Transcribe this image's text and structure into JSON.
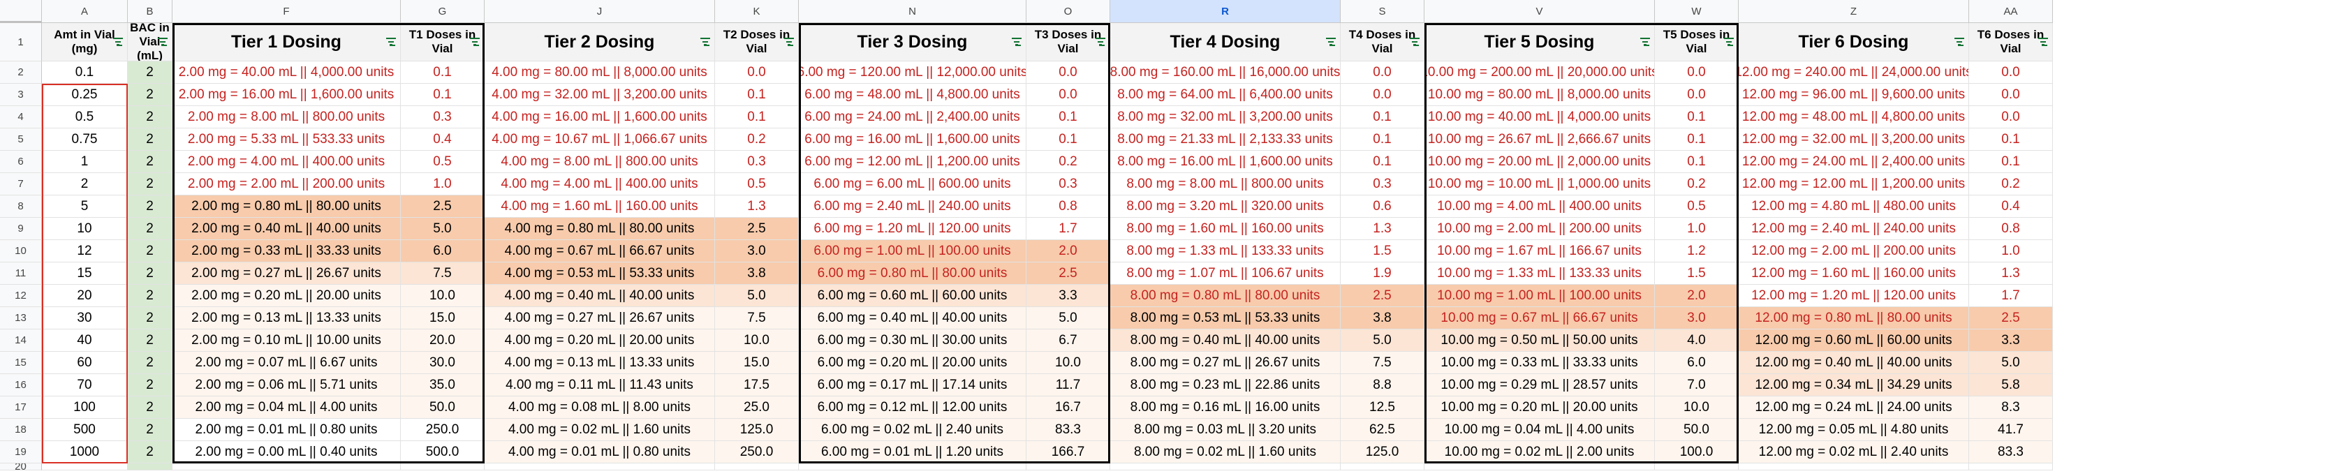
{
  "columns": [
    "A",
    "B",
    "F",
    "G",
    "J",
    "K",
    "N",
    "O",
    "R",
    "S",
    "V",
    "W",
    "Z",
    "AA"
  ],
  "selected_column": "R",
  "row_numbers": [
    "1",
    "2",
    "3",
    "4",
    "5",
    "6",
    "7",
    "8",
    "9",
    "10",
    "11",
    "12",
    "13",
    "14",
    "15",
    "16",
    "17",
    "18",
    "19",
    "20"
  ],
  "headers": [
    "Amt in Vial (mg)",
    "BAC in Vial (mL)",
    "Tier 1 Dosing",
    "T1 Doses in Vial",
    "Tier 2 Dosing",
    "T2 Doses in Vial",
    "Tier 3 Dosing",
    "T3 Doses in Vial",
    "Tier 4 Dosing",
    "T4 Doses in Vial",
    "Tier 5 Dosing",
    "T5 Doses in Vial",
    "Tier 6 Dosing",
    "T6 Doses in Vial"
  ],
  "rows": [
    [
      "0.1",
      "2",
      "2.00 mg = 40.00 mL || 4,000.00 units",
      "0.1",
      "4.00 mg = 80.00 mL || 8,000.00 units",
      "0.0",
      "6.00 mg = 120.00 mL || 12,000.00 units",
      "0.0",
      "8.00 mg = 160.00 mL || 16,000.00 units",
      "0.0",
      "10.00 mg = 200.00 mL || 20,000.00 units",
      "0.0",
      "12.00 mg = 240.00 mL || 24,000.00 units",
      "0.0"
    ],
    [
      "0.25",
      "2",
      "2.00 mg = 16.00 mL || 1,600.00 units",
      "0.1",
      "4.00 mg = 32.00 mL || 3,200.00 units",
      "0.1",
      "6.00 mg = 48.00 mL || 4,800.00 units",
      "0.0",
      "8.00 mg = 64.00 mL || 6,400.00 units",
      "0.0",
      "10.00 mg = 80.00 mL || 8,000.00 units",
      "0.0",
      "12.00 mg = 96.00 mL || 9,600.00 units",
      "0.0"
    ],
    [
      "0.5",
      "2",
      "2.00 mg = 8.00 mL || 800.00 units",
      "0.3",
      "4.00 mg = 16.00 mL || 1,600.00 units",
      "0.1",
      "6.00 mg = 24.00 mL || 2,400.00 units",
      "0.1",
      "8.00 mg = 32.00 mL || 3,200.00 units",
      "0.1",
      "10.00 mg = 40.00 mL || 4,000.00 units",
      "0.1",
      "12.00 mg = 48.00 mL || 4,800.00 units",
      "0.0"
    ],
    [
      "0.75",
      "2",
      "2.00 mg = 5.33 mL || 533.33 units",
      "0.4",
      "4.00 mg = 10.67 mL || 1,066.67 units",
      "0.2",
      "6.00 mg = 16.00 mL || 1,600.00 units",
      "0.1",
      "8.00 mg = 21.33 mL || 2,133.33 units",
      "0.1",
      "10.00 mg = 26.67 mL || 2,666.67 units",
      "0.1",
      "12.00 mg = 32.00 mL || 3,200.00 units",
      "0.1"
    ],
    [
      "1",
      "2",
      "2.00 mg = 4.00 mL || 400.00 units",
      "0.5",
      "4.00 mg = 8.00 mL || 800.00 units",
      "0.3",
      "6.00 mg = 12.00 mL || 1,200.00 units",
      "0.2",
      "8.00 mg = 16.00 mL || 1,600.00 units",
      "0.1",
      "10.00 mg = 20.00 mL || 2,000.00 units",
      "0.1",
      "12.00 mg = 24.00 mL || 2,400.00 units",
      "0.1"
    ],
    [
      "2",
      "2",
      "2.00 mg = 2.00 mL || 200.00 units",
      "1.0",
      "4.00 mg = 4.00 mL || 400.00 units",
      "0.5",
      "6.00 mg = 6.00 mL || 600.00 units",
      "0.3",
      "8.00 mg = 8.00 mL || 800.00 units",
      "0.3",
      "10.00 mg = 10.00 mL || 1,000.00 units",
      "0.2",
      "12.00 mg = 12.00 mL || 1,200.00 units",
      "0.2"
    ],
    [
      "5",
      "2",
      "2.00 mg = 0.80 mL || 80.00 units",
      "2.5",
      "4.00 mg = 1.60 mL || 160.00 units",
      "1.3",
      "6.00 mg = 2.40 mL || 240.00 units",
      "0.8",
      "8.00 mg = 3.20 mL || 320.00 units",
      "0.6",
      "10.00 mg = 4.00 mL || 400.00 units",
      "0.5",
      "12.00 mg = 4.80 mL || 480.00 units",
      "0.4"
    ],
    [
      "10",
      "2",
      "2.00 mg = 0.40 mL || 40.00 units",
      "5.0",
      "4.00 mg = 0.80 mL || 80.00 units",
      "2.5",
      "6.00 mg = 1.20 mL || 120.00 units",
      "1.7",
      "8.00 mg = 1.60 mL || 160.00 units",
      "1.3",
      "10.00 mg = 2.00 mL || 200.00 units",
      "1.0",
      "12.00 mg = 2.40 mL || 240.00 units",
      "0.8"
    ],
    [
      "12",
      "2",
      "2.00 mg = 0.33 mL || 33.33 units",
      "6.0",
      "4.00 mg = 0.67 mL || 66.67 units",
      "3.0",
      "6.00 mg = 1.00 mL || 100.00 units",
      "2.0",
      "8.00 mg = 1.33 mL || 133.33 units",
      "1.5",
      "10.00 mg = 1.67 mL || 166.67 units",
      "1.2",
      "12.00 mg = 2.00 mL || 200.00 units",
      "1.0"
    ],
    [
      "15",
      "2",
      "2.00 mg = 0.27 mL || 26.67 units",
      "7.5",
      "4.00 mg = 0.53 mL || 53.33 units",
      "3.8",
      "6.00 mg = 0.80 mL || 80.00 units",
      "2.5",
      "8.00 mg = 1.07 mL || 106.67 units",
      "1.9",
      "10.00 mg = 1.33 mL || 133.33 units",
      "1.5",
      "12.00 mg = 1.60 mL || 160.00 units",
      "1.3"
    ],
    [
      "20",
      "2",
      "2.00 mg = 0.20 mL || 20.00 units",
      "10.0",
      "4.00 mg = 0.40 mL || 40.00 units",
      "5.0",
      "6.00 mg = 0.60 mL || 60.00 units",
      "3.3",
      "8.00 mg = 0.80 mL || 80.00 units",
      "2.5",
      "10.00 mg = 1.00 mL || 100.00 units",
      "2.0",
      "12.00 mg = 1.20 mL || 120.00 units",
      "1.7"
    ],
    [
      "30",
      "2",
      "2.00 mg = 0.13 mL || 13.33 units",
      "15.0",
      "4.00 mg = 0.27 mL || 26.67 units",
      "7.5",
      "6.00 mg = 0.40 mL || 40.00 units",
      "5.0",
      "8.00 mg = 0.53 mL || 53.33 units",
      "3.8",
      "10.00 mg = 0.67 mL || 66.67 units",
      "3.0",
      "12.00 mg = 0.80 mL || 80.00 units",
      "2.5"
    ],
    [
      "40",
      "2",
      "2.00 mg = 0.10 mL || 10.00 units",
      "20.0",
      "4.00 mg = 0.20 mL || 20.00 units",
      "10.0",
      "6.00 mg = 0.30 mL || 30.00 units",
      "6.7",
      "8.00 mg = 0.40 mL || 40.00 units",
      "5.0",
      "10.00 mg = 0.50 mL || 50.00 units",
      "4.0",
      "12.00 mg = 0.60 mL || 60.00 units",
      "3.3"
    ],
    [
      "60",
      "2",
      "2.00 mg = 0.07 mL || 6.67 units",
      "30.0",
      "4.00 mg = 0.13 mL || 13.33 units",
      "15.0",
      "6.00 mg = 0.20 mL || 20.00 units",
      "10.0",
      "8.00 mg = 0.27 mL || 26.67 units",
      "7.5",
      "10.00 mg = 0.33 mL || 33.33 units",
      "6.0",
      "12.00 mg = 0.40 mL || 40.00 units",
      "5.0"
    ],
    [
      "70",
      "2",
      "2.00 mg = 0.06 mL || 5.71 units",
      "35.0",
      "4.00 mg = 0.11 mL || 11.43 units",
      "17.5",
      "6.00 mg = 0.17 mL || 17.14 units",
      "11.7",
      "8.00 mg = 0.23 mL || 22.86 units",
      "8.8",
      "10.00 mg = 0.29 mL || 28.57 units",
      "7.0",
      "12.00 mg = 0.34 mL || 34.29 units",
      "5.8"
    ],
    [
      "100",
      "2",
      "2.00 mg = 0.04 mL || 4.00 units",
      "50.0",
      "4.00 mg = 0.08 mL || 8.00 units",
      "25.0",
      "6.00 mg = 0.12 mL || 12.00 units",
      "16.7",
      "8.00 mg = 0.16 mL || 16.00 units",
      "12.5",
      "10.00 mg = 0.20 mL || 20.00 units",
      "10.0",
      "12.00 mg = 0.24 mL || 24.00 units",
      "8.3"
    ],
    [
      "500",
      "2",
      "2.00 mg = 0.01 mL || 0.80 units",
      "250.0",
      "4.00 mg = 0.02 mL || 1.60 units",
      "125.0",
      "6.00 mg = 0.02 mL || 2.40 units",
      "83.3",
      "8.00 mg = 0.03 mL || 3.20 units",
      "62.5",
      "10.00 mg = 0.04 mL || 4.00 units",
      "50.0",
      "12.00 mg = 0.05 mL || 4.80 units",
      "41.7"
    ],
    [
      "1000",
      "2",
      "2.00 mg = 0.00 mL || 0.40 units",
      "500.0",
      "4.00 mg = 0.01 mL || 0.80 units",
      "250.0",
      "6.00 mg = 0.01 mL || 1.20 units",
      "166.7",
      "8.00 mg = 0.02 mL || 1.60 units",
      "125.0",
      "10.00 mg = 0.02 mL || 2.00 units",
      "100.0",
      "12.00 mg = 0.02 mL || 2.40 units",
      "83.3"
    ],
    [
      "",
      "",
      "",
      "",
      "",
      "",
      "",
      "",
      "",
      "",
      "",
      "",
      "",
      ""
    ]
  ],
  "colors": {
    "red_text": "#c5221f",
    "highlight_strong": "#f7cbac",
    "highlight_mid": "#fce5d5",
    "highlight_light": "#fef5ee",
    "bac_green": "#d9ead3",
    "header_bg": "#f3f3f3",
    "filter_green": "#137333"
  }
}
